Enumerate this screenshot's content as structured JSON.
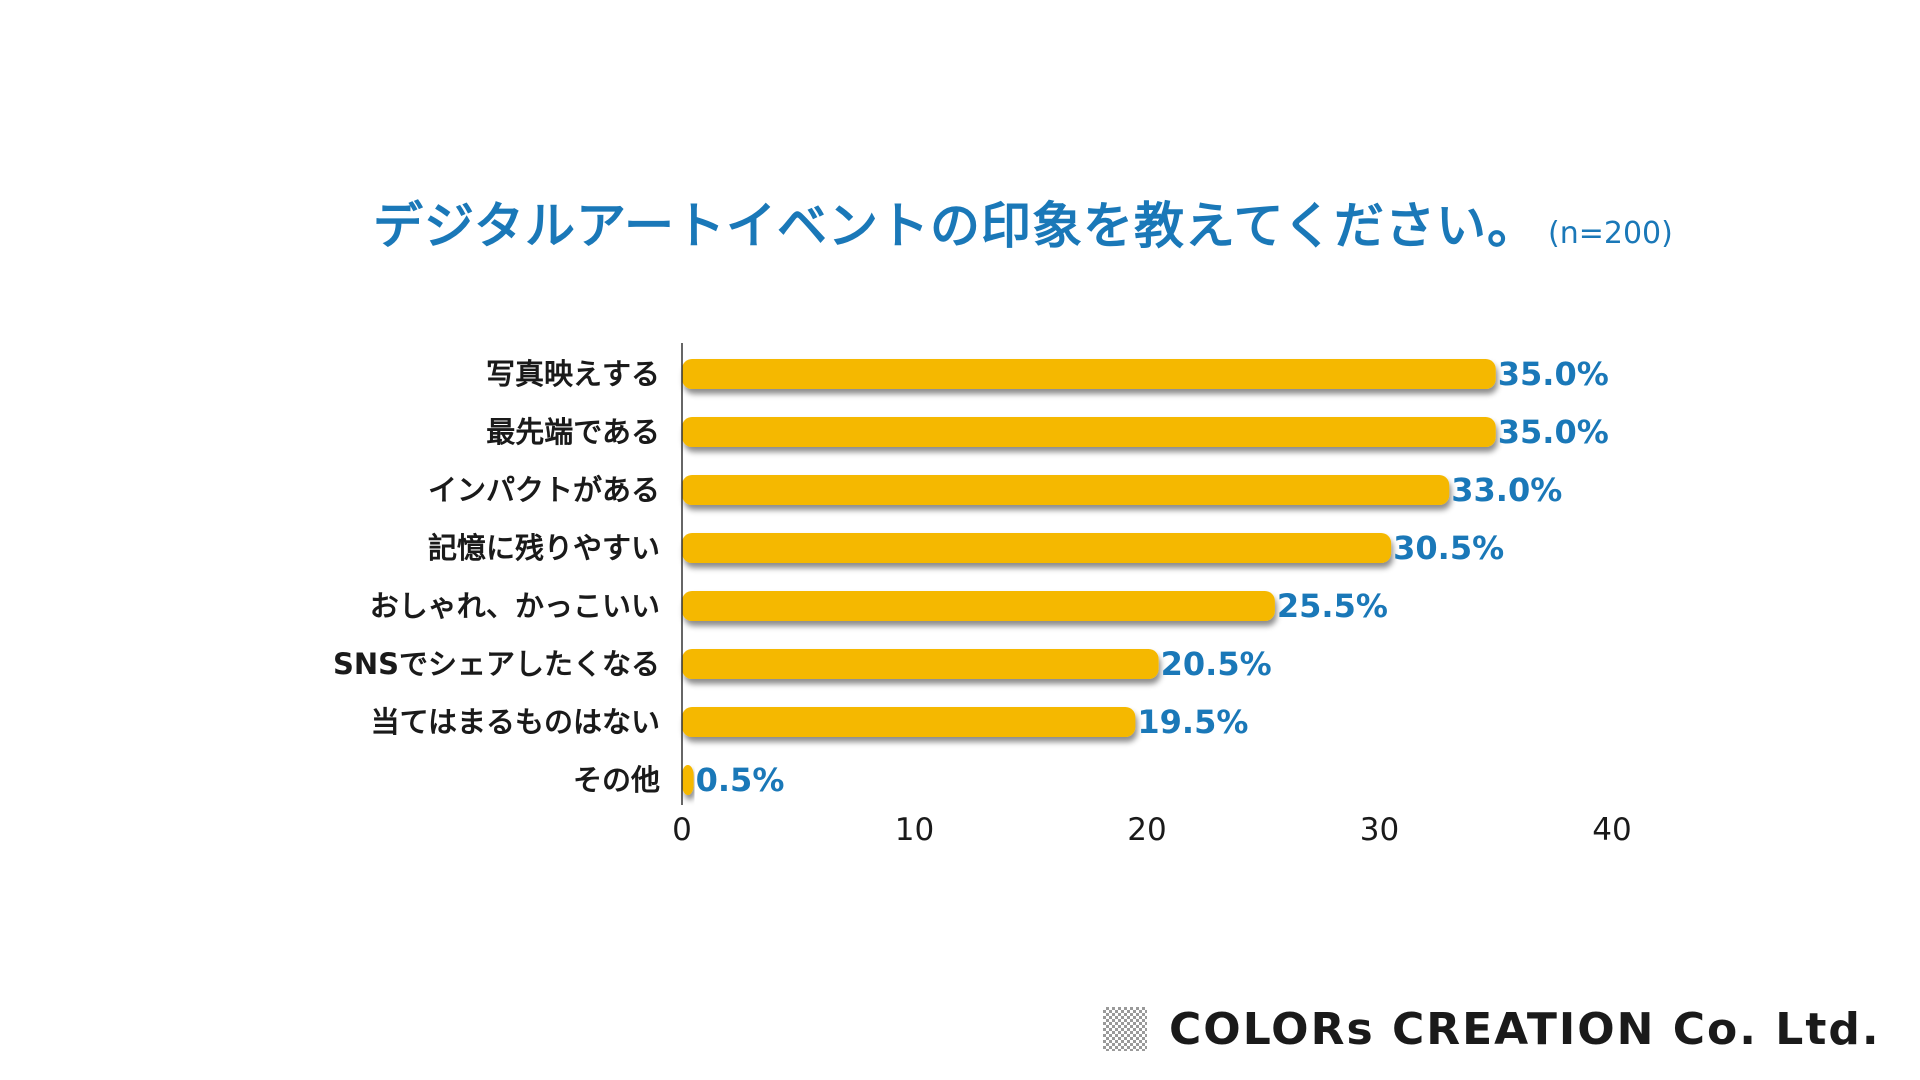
{
  "title": {
    "main": "デジタルアートイベントの印象を教えてください。",
    "sample": "(n=200)"
  },
  "colors": {
    "bar": "#f5b800",
    "accent": "#1a78b8",
    "label": "#1a1a1a",
    "axis": "#333333"
  },
  "chart_data": {
    "type": "bar",
    "orientation": "horizontal",
    "title": "デジタルアートイベントの印象を教えてください。",
    "categories": [
      "写真映えする",
      "最先端である",
      "インパクトがある",
      "記憶に残りやすい",
      "おしゃれ、かっこいい",
      "SNSでシェアしたくなる",
      "当てはまるものはない",
      "その他"
    ],
    "values": [
      35.0,
      35.0,
      33.0,
      30.5,
      25.5,
      20.5,
      19.5,
      0.5
    ],
    "value_labels": [
      "35.0%",
      "35.0%",
      "33.0%",
      "30.5%",
      "25.5%",
      "20.5%",
      "19.5%",
      "0.5%"
    ],
    "xlim": [
      0,
      40
    ],
    "xticks": [
      0,
      10,
      20,
      30,
      40
    ],
    "xlabel": "",
    "ylabel": "",
    "grid": false,
    "legend": "none"
  },
  "footer": {
    "logo_text": "COLORs CREATION Co. Ltd."
  }
}
